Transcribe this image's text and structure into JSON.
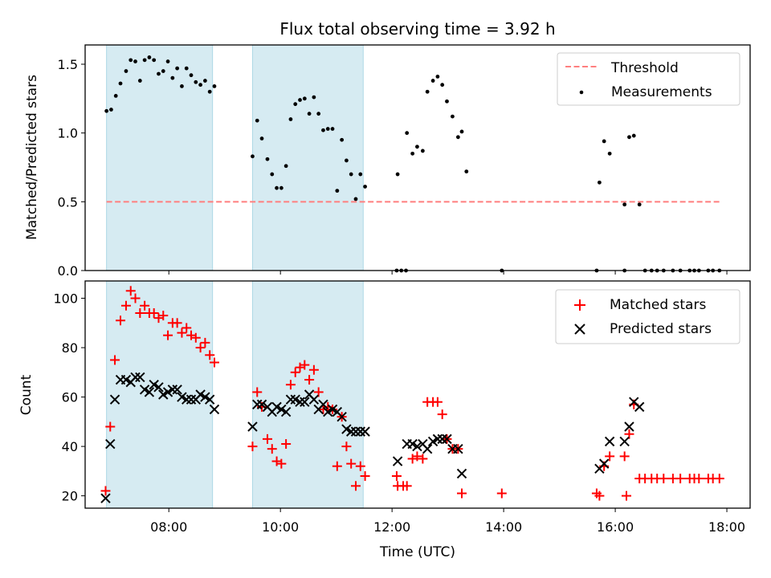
{
  "figure": {
    "title": "Flux total observing time = 3.92 h"
  },
  "colors": {
    "band": "#add8e6",
    "threshold": "#ff7f7f",
    "measurement": "#000000",
    "matched": "#ff0000",
    "predicted": "#000000"
  },
  "chart_data": [
    {
      "type": "scatter",
      "title": "Flux total observing time = 3.92 h",
      "xlabel": "",
      "ylabel": "Matched/Predicted stars",
      "xlim": [
        "06:30",
        "18:25"
      ],
      "ylim": [
        0,
        1.64
      ],
      "yticks": [
        0.0,
        0.5,
        1.0,
        1.5
      ],
      "ytick_labels": [
        "0.0",
        "0.5",
        "1.0",
        "1.5"
      ],
      "xticks": [
        "08:00",
        "10:00",
        "12:00",
        "14:00",
        "16:00",
        "18:00"
      ],
      "xtick_labels_shown": false,
      "legend_position": "top-right",
      "bands": [
        {
          "x0": "06:53",
          "x1": "08:47"
        },
        {
          "x0": "09:30",
          "x1": "11:29"
        }
      ],
      "threshold": {
        "name": "Threshold",
        "y": 0.5,
        "x0": "06:53",
        "x1": "17:52"
      },
      "series": [
        {
          "name": "Measurements",
          "points": [
            [
              "06:53",
              1.16
            ],
            [
              "06:58",
              1.17
            ],
            [
              "07:03",
              1.27
            ],
            [
              "07:08",
              1.36
            ],
            [
              "07:14",
              1.45
            ],
            [
              "07:19",
              1.53
            ],
            [
              "07:24",
              1.52
            ],
            [
              "07:29",
              1.38
            ],
            [
              "07:34",
              1.53
            ],
            [
              "07:39",
              1.55
            ],
            [
              "07:44",
              1.53
            ],
            [
              "07:49",
              1.43
            ],
            [
              "07:54",
              1.45
            ],
            [
              "07:59",
              1.52
            ],
            [
              "08:04",
              1.4
            ],
            [
              "08:09",
              1.47
            ],
            [
              "08:14",
              1.34
            ],
            [
              "08:19",
              1.47
            ],
            [
              "08:24",
              1.42
            ],
            [
              "08:29",
              1.37
            ],
            [
              "08:34",
              1.35
            ],
            [
              "08:39",
              1.38
            ],
            [
              "08:44",
              1.3
            ],
            [
              "08:49",
              1.34
            ],
            [
              "09:30",
              0.83
            ],
            [
              "09:35",
              1.09
            ],
            [
              "09:40",
              0.96
            ],
            [
              "09:46",
              0.81
            ],
            [
              "09:51",
              0.7
            ],
            [
              "09:56",
              0.6
            ],
            [
              "10:01",
              0.6
            ],
            [
              "10:06",
              0.76
            ],
            [
              "10:11",
              1.1
            ],
            [
              "10:16",
              1.21
            ],
            [
              "10:21",
              1.24
            ],
            [
              "10:26",
              1.25
            ],
            [
              "10:31",
              1.14
            ],
            [
              "10:36",
              1.26
            ],
            [
              "10:41",
              1.14
            ],
            [
              "10:46",
              1.02
            ],
            [
              "10:51",
              1.03
            ],
            [
              "10:56",
              1.03
            ],
            [
              "11:01",
              0.58
            ],
            [
              "11:06",
              0.95
            ],
            [
              "11:11",
              0.8
            ],
            [
              "11:16",
              0.7
            ],
            [
              "11:21",
              0.52
            ],
            [
              "11:26",
              0.7
            ],
            [
              "11:31",
              0.61
            ],
            [
              "12:06",
              0.7
            ],
            [
              "12:16",
              1.0
            ],
            [
              "12:22",
              0.85
            ],
            [
              "12:27",
              0.9
            ],
            [
              "12:33",
              0.87
            ],
            [
              "12:38",
              1.3
            ],
            [
              "12:44",
              1.38
            ],
            [
              "12:49",
              1.41
            ],
            [
              "12:54",
              1.35
            ],
            [
              "12:59",
              1.23
            ],
            [
              "13:05",
              1.12
            ],
            [
              "13:11",
              0.97
            ],
            [
              "13:15",
              1.01
            ],
            [
              "13:20",
              0.72
            ],
            [
              "15:43",
              0.64
            ],
            [
              "15:48",
              0.94
            ],
            [
              "15:54",
              0.85
            ],
            [
              "16:10",
              0.48
            ],
            [
              "16:15",
              0.97
            ],
            [
              "16:20",
              0.98
            ],
            [
              "16:26",
              0.48
            ],
            [
              "12:05",
              0.0
            ],
            [
              "12:10",
              0.0
            ],
            [
              "12:15",
              0.0
            ],
            [
              "13:58",
              0.0
            ],
            [
              "15:40",
              0.0
            ],
            [
              "16:10",
              0.0
            ],
            [
              "16:32",
              0.0
            ],
            [
              "16:39",
              0.0
            ],
            [
              "16:45",
              0.0
            ],
            [
              "16:52",
              0.0
            ],
            [
              "17:02",
              0.0
            ],
            [
              "17:10",
              0.0
            ],
            [
              "17:20",
              0.0
            ],
            [
              "17:25",
              0.0
            ],
            [
              "17:30",
              0.0
            ],
            [
              "17:40",
              0.0
            ],
            [
              "17:45",
              0.0
            ],
            [
              "17:52",
              0.0
            ]
          ]
        }
      ]
    },
    {
      "type": "scatter",
      "title": "",
      "xlabel": "Time (UTC)",
      "ylabel": "Count",
      "xlim": [
        "06:30",
        "18:25"
      ],
      "ylim": [
        15,
        107
      ],
      "yticks": [
        20,
        40,
        60,
        80,
        100
      ],
      "ytick_labels": [
        "20",
        "40",
        "60",
        "80",
        "100"
      ],
      "xticks": [
        "08:00",
        "10:00",
        "12:00",
        "14:00",
        "16:00",
        "18:00"
      ],
      "xtick_labels": [
        "08:00",
        "10:00",
        "12:00",
        "14:00",
        "16:00",
        "18:00"
      ],
      "legend_position": "top-right",
      "bands": [
        {
          "x0": "06:53",
          "x1": "08:47"
        },
        {
          "x0": "09:30",
          "x1": "11:29"
        }
      ],
      "series": [
        {
          "name": "Matched stars",
          "marker": "plus",
          "points": [
            [
              "06:52",
              22
            ],
            [
              "06:57",
              48
            ],
            [
              "07:02",
              75
            ],
            [
              "07:08",
              91
            ],
            [
              "07:14",
              97
            ],
            [
              "07:19",
              103
            ],
            [
              "07:24",
              100
            ],
            [
              "07:29",
              94
            ],
            [
              "07:34",
              97
            ],
            [
              "07:39",
              94
            ],
            [
              "07:44",
              94
            ],
            [
              "07:49",
              92
            ],
            [
              "07:54",
              93
            ],
            [
              "07:59",
              85
            ],
            [
              "08:04",
              90
            ],
            [
              "08:09",
              90
            ],
            [
              "08:14",
              86
            ],
            [
              "08:19",
              88
            ],
            [
              "08:24",
              85
            ],
            [
              "08:29",
              84
            ],
            [
              "08:34",
              80
            ],
            [
              "08:39",
              82
            ],
            [
              "08:44",
              77
            ],
            [
              "08:49",
              74
            ],
            [
              "09:30",
              40
            ],
            [
              "09:35",
              62
            ],
            [
              "09:40",
              56
            ],
            [
              "09:46",
              43
            ],
            [
              "09:51",
              39
            ],
            [
              "09:56",
              34
            ],
            [
              "10:01",
              33
            ],
            [
              "10:06",
              41
            ],
            [
              "10:11",
              65
            ],
            [
              "10:16",
              70
            ],
            [
              "10:21",
              72
            ],
            [
              "10:26",
              73
            ],
            [
              "10:31",
              67
            ],
            [
              "10:36",
              71
            ],
            [
              "10:41",
              62
            ],
            [
              "10:46",
              55
            ],
            [
              "10:51",
              56
            ],
            [
              "10:56",
              55
            ],
            [
              "11:01",
              32
            ],
            [
              "11:06",
              52
            ],
            [
              "11:11",
              40
            ],
            [
              "11:16",
              33
            ],
            [
              "11:21",
              24
            ],
            [
              "11:26",
              32
            ],
            [
              "11:31",
              28
            ],
            [
              "12:05",
              28
            ],
            [
              "12:06",
              24
            ],
            [
              "12:12",
              24
            ],
            [
              "12:16",
              24
            ],
            [
              "12:22",
              35
            ],
            [
              "12:27",
              36
            ],
            [
              "12:33",
              35
            ],
            [
              "12:38",
              58
            ],
            [
              "12:44",
              58
            ],
            [
              "12:49",
              58
            ],
            [
              "12:54",
              53
            ],
            [
              "12:59",
              43
            ],
            [
              "13:05",
              39
            ],
            [
              "13:11",
              39
            ],
            [
              "13:15",
              21
            ],
            [
              "13:58",
              21
            ],
            [
              "15:40",
              21
            ],
            [
              "15:43",
              20
            ],
            [
              "15:48",
              32
            ],
            [
              "15:54",
              36
            ],
            [
              "16:10",
              36
            ],
            [
              "16:12",
              20
            ],
            [
              "16:15",
              45
            ],
            [
              "16:20",
              57
            ],
            [
              "16:26",
              27
            ],
            [
              "16:32",
              27
            ],
            [
              "16:39",
              27
            ],
            [
              "16:45",
              27
            ],
            [
              "16:52",
              27
            ],
            [
              "17:02",
              27
            ],
            [
              "17:10",
              27
            ],
            [
              "17:20",
              27
            ],
            [
              "17:25",
              27
            ],
            [
              "17:30",
              27
            ],
            [
              "17:40",
              27
            ],
            [
              "17:45",
              27
            ],
            [
              "17:52",
              27
            ]
          ]
        },
        {
          "name": "Predicted stars",
          "marker": "x",
          "points": [
            [
              "06:52",
              19
            ],
            [
              "06:57",
              41
            ],
            [
              "07:02",
              59
            ],
            [
              "07:08",
              67
            ],
            [
              "07:14",
              67
            ],
            [
              "07:19",
              66
            ],
            [
              "07:24",
              68
            ],
            [
              "07:29",
              68
            ],
            [
              "07:34",
              63
            ],
            [
              "07:39",
              62
            ],
            [
              "07:44",
              65
            ],
            [
              "07:49",
              64
            ],
            [
              "07:54",
              61
            ],
            [
              "07:59",
              62
            ],
            [
              "08:04",
              63
            ],
            [
              "08:09",
              63
            ],
            [
              "08:14",
              60
            ],
            [
              "08:19",
              59
            ],
            [
              "08:24",
              59
            ],
            [
              "08:29",
              59
            ],
            [
              "08:34",
              61
            ],
            [
              "08:39",
              60
            ],
            [
              "08:44",
              59
            ],
            [
              "08:49",
              55
            ],
            [
              "09:30",
              48
            ],
            [
              "09:35",
              57
            ],
            [
              "09:40",
              57
            ],
            [
              "09:46",
              56
            ],
            [
              "09:51",
              54
            ],
            [
              "09:56",
              56
            ],
            [
              "10:01",
              55
            ],
            [
              "10:06",
              54
            ],
            [
              "10:11",
              59
            ],
            [
              "10:16",
              59
            ],
            [
              "10:21",
              58
            ],
            [
              "10:26",
              58
            ],
            [
              "10:31",
              61
            ],
            [
              "10:36",
              59
            ],
            [
              "10:41",
              55
            ],
            [
              "10:46",
              57
            ],
            [
              "10:51",
              54
            ],
            [
              "10:56",
              55
            ],
            [
              "11:01",
              54
            ],
            [
              "11:06",
              52
            ],
            [
              "11:11",
              47
            ],
            [
              "11:16",
              46
            ],
            [
              "11:21",
              46
            ],
            [
              "11:26",
              46
            ],
            [
              "11:31",
              46
            ],
            [
              "12:06",
              34
            ],
            [
              "12:16",
              41
            ],
            [
              "12:22",
              41
            ],
            [
              "12:27",
              40
            ],
            [
              "12:33",
              41
            ],
            [
              "12:38",
              39
            ],
            [
              "12:44",
              42
            ],
            [
              "12:49",
              43
            ],
            [
              "12:54",
              43
            ],
            [
              "12:59",
              43
            ],
            [
              "13:05",
              39
            ],
            [
              "13:11",
              39
            ],
            [
              "13:15",
              29
            ],
            [
              "15:43",
              31
            ],
            [
              "15:48",
              33
            ],
            [
              "15:54",
              42
            ],
            [
              "16:10",
              42
            ],
            [
              "16:15",
              48
            ],
            [
              "16:20",
              58
            ],
            [
              "16:26",
              56
            ]
          ]
        }
      ]
    }
  ]
}
